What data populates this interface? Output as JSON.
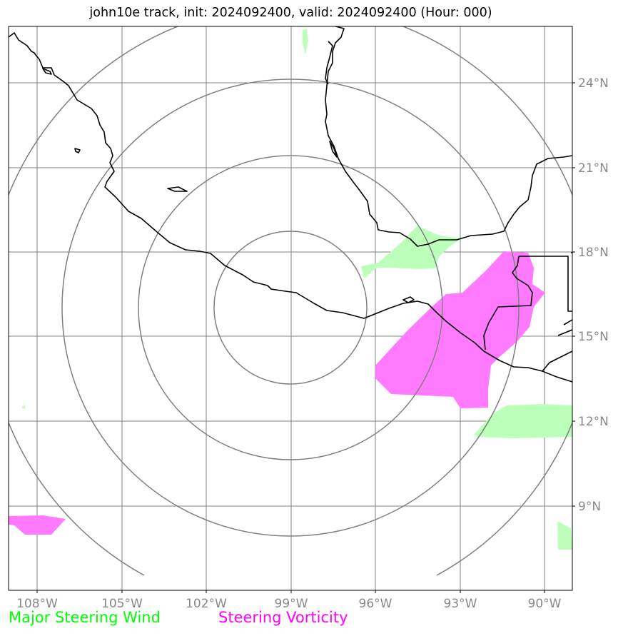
{
  "title": "john10e track, init: 2024092400, valid: 2024092400 (Hour: 000)",
  "map": {
    "lon_labels": [
      "108°W",
      "105°W",
      "102°W",
      "99°W",
      "96°W",
      "93°W",
      "90°W"
    ],
    "lat_labels": [
      "24°N",
      "21°N",
      "18°N",
      "15°N",
      "12°N",
      "9°N"
    ],
    "gridline_color": "#808080",
    "coastline_color": "#000000",
    "range_ring_color": "#808080",
    "range_ring_count": 4
  },
  "legend": {
    "wind_label": "Major Steering Wind",
    "wind_color": "#00ff00",
    "vorticity_label": "Steering Vorticity",
    "vorticity_color": "#ff00ff"
  }
}
